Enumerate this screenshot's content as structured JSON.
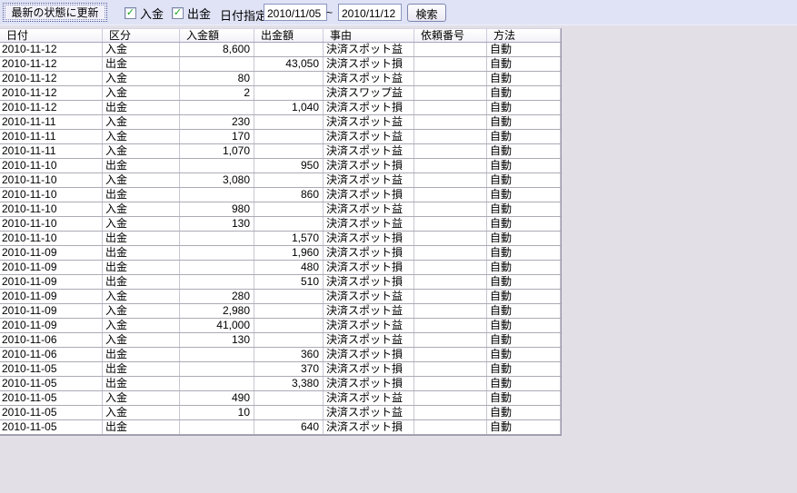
{
  "toolbar": {
    "refresh_button_label": "最新の状態に更新",
    "filters": [
      {
        "key": "deposit",
        "label": "入金",
        "checked": true
      },
      {
        "key": "withdrawal",
        "label": "出金",
        "checked": true
      }
    ],
    "date_label": "日付指定",
    "date_from": "2010/11/05",
    "date_separator": "~",
    "date_to": "2010/11/12",
    "search_button_label": "検索"
  },
  "icons": {
    "checkbox_check": "✓"
  },
  "table": {
    "columns": [
      {
        "key": "date",
        "label": "日付",
        "width": 113,
        "align": "left",
        "type": "date"
      },
      {
        "key": "category",
        "label": "区分",
        "width": 85,
        "align": "left",
        "type": "text"
      },
      {
        "key": "deposit-amount",
        "label": "入金額",
        "width": 82,
        "align": "right",
        "type": "num"
      },
      {
        "key": "withdraw-amount",
        "label": "出金額",
        "width": 76,
        "align": "right",
        "type": "num"
      },
      {
        "key": "reason",
        "label": "事由",
        "width": 100,
        "align": "left",
        "type": "text"
      },
      {
        "key": "request-number",
        "label": "依頼番号",
        "width": 80,
        "align": "left",
        "type": "text"
      },
      {
        "key": "method",
        "label": "方法",
        "width": 81,
        "align": "left",
        "type": "text"
      }
    ],
    "rows": [
      [
        "2010-11-12",
        "入金",
        "8,600",
        "",
        "決済スポット益",
        "",
        "自動"
      ],
      [
        "2010-11-12",
        "出金",
        "",
        "43,050",
        "決済スポット損",
        "",
        "自動"
      ],
      [
        "2010-11-12",
        "入金",
        "80",
        "",
        "決済スポット益",
        "",
        "自動"
      ],
      [
        "2010-11-12",
        "入金",
        "2",
        "",
        "決済スワップ益",
        "",
        "自動"
      ],
      [
        "2010-11-12",
        "出金",
        "",
        "1,040",
        "決済スポット損",
        "",
        "自動"
      ],
      [
        "2010-11-11",
        "入金",
        "230",
        "",
        "決済スポット益",
        "",
        "自動"
      ],
      [
        "2010-11-11",
        "入金",
        "170",
        "",
        "決済スポット益",
        "",
        "自動"
      ],
      [
        "2010-11-11",
        "入金",
        "1,070",
        "",
        "決済スポット益",
        "",
        "自動"
      ],
      [
        "2010-11-10",
        "出金",
        "",
        "950",
        "決済スポット損",
        "",
        "自動"
      ],
      [
        "2010-11-10",
        "入金",
        "3,080",
        "",
        "決済スポット益",
        "",
        "自動"
      ],
      [
        "2010-11-10",
        "出金",
        "",
        "860",
        "決済スポット損",
        "",
        "自動"
      ],
      [
        "2010-11-10",
        "入金",
        "980",
        "",
        "決済スポット益",
        "",
        "自動"
      ],
      [
        "2010-11-10",
        "入金",
        "130",
        "",
        "決済スポット益",
        "",
        "自動"
      ],
      [
        "2010-11-10",
        "出金",
        "",
        "1,570",
        "決済スポット損",
        "",
        "自動"
      ],
      [
        "2010-11-09",
        "出金",
        "",
        "1,960",
        "決済スポット損",
        "",
        "自動"
      ],
      [
        "2010-11-09",
        "出金",
        "",
        "480",
        "決済スポット損",
        "",
        "自動"
      ],
      [
        "2010-11-09",
        "出金",
        "",
        "510",
        "決済スポット損",
        "",
        "自動"
      ],
      [
        "2010-11-09",
        "入金",
        "280",
        "",
        "決済スポット益",
        "",
        "自動"
      ],
      [
        "2010-11-09",
        "入金",
        "2,980",
        "",
        "決済スポット益",
        "",
        "自動"
      ],
      [
        "2010-11-09",
        "入金",
        "41,000",
        "",
        "決済スポット益",
        "",
        "自動"
      ],
      [
        "2010-11-06",
        "入金",
        "130",
        "",
        "決済スポット益",
        "",
        "自動"
      ],
      [
        "2010-11-06",
        "出金",
        "",
        "360",
        "決済スポット損",
        "",
        "自動"
      ],
      [
        "2010-11-05",
        "出金",
        "",
        "370",
        "決済スポット損",
        "",
        "自動"
      ],
      [
        "2010-11-05",
        "出金",
        "",
        "3,380",
        "決済スポット損",
        "",
        "自動"
      ],
      [
        "2010-11-05",
        "入金",
        "490",
        "",
        "決済スポット益",
        "",
        "自動"
      ],
      [
        "2010-11-05",
        "入金",
        "10",
        "",
        "決済スポット益",
        "",
        "自動"
      ],
      [
        "2010-11-05",
        "出金",
        "",
        "640",
        "決済スポット損",
        "",
        "自動"
      ]
    ]
  },
  "colors": {
    "page_background": "#e3dfe7",
    "toolbar_background": "#dfe3f5",
    "table_background": "#ffffff",
    "grid_line_horizontal": "#ababb6",
    "grid_line_vertical": "#c8c5d4",
    "header_separator": "#cfc9dd",
    "checkbox_check_green": "#18a31c",
    "input_border": "#8a94c0",
    "text": "#000000"
  }
}
